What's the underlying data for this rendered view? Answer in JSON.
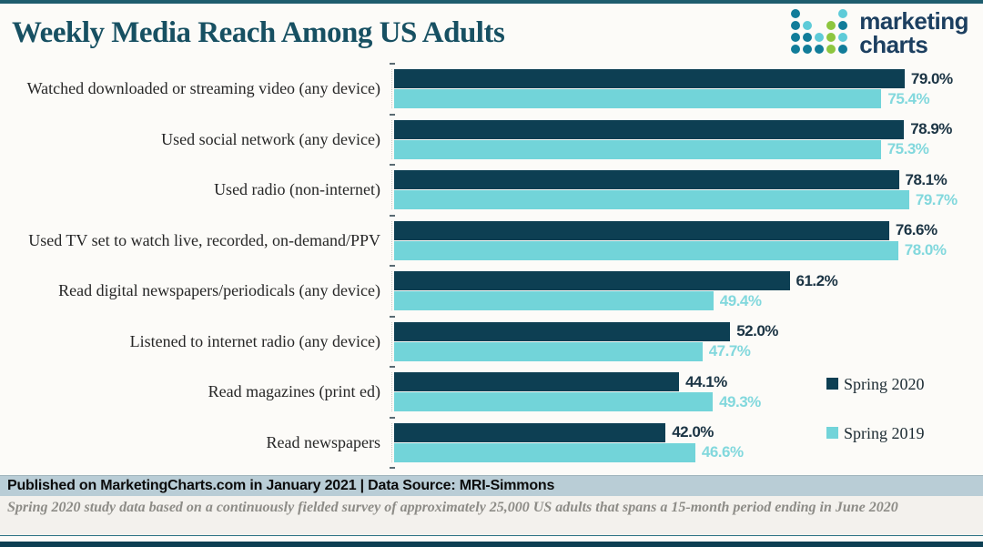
{
  "header": {
    "title": "Weekly Media Reach Among US Adults",
    "logo": {
      "word_line1": "marketing",
      "word_line2": "charts",
      "dot_rows": [
        "T...C",
        "TC.GT",
        "TTCGC",
        "TTTGT"
      ],
      "dot_colors": {
        "T": "#117c99",
        "C": "#5ecbd8",
        "G": "#8dc63f"
      }
    }
  },
  "chart_data": {
    "type": "bar",
    "orientation": "horizontal",
    "title": "Weekly Media Reach Among US Adults",
    "categories": [
      "Watched downloaded or streaming video (any device)",
      "Used social network (any device)",
      "Used radio (non-internet)",
      "Used TV set to watch live, recorded, on-demand/PPV",
      "Read digital newspapers/periodicals (any device)",
      "Listened to internet radio (any device)",
      "Read magazines (print ed)",
      "Read newspapers"
    ],
    "series": [
      {
        "name": "Spring 2020",
        "color": "#0d3f53",
        "value_label_color": "#1b3444",
        "values": [
          79.0,
          78.9,
          78.1,
          76.6,
          61.2,
          52.0,
          44.1,
          42.0
        ]
      },
      {
        "name": "Spring 2019",
        "color": "#72d4d9",
        "value_label_color": "#82d8dd",
        "values": [
          75.4,
          75.3,
          79.7,
          78.0,
          49.4,
          47.7,
          49.3,
          46.6
        ]
      }
    ],
    "value_suffix": "%",
    "xlim": [
      0,
      87.6
    ],
    "grid": false,
    "legend_position": "right-middle"
  },
  "footer": {
    "publication_line": "Published on MarketingCharts.com in January 2021 | Data Source: MRI-Simmons",
    "note": "Spring 2020 study data based on a continuously fielded survey of approximately 25,000 US adults that spans a 15-month period ending in June 2020"
  }
}
